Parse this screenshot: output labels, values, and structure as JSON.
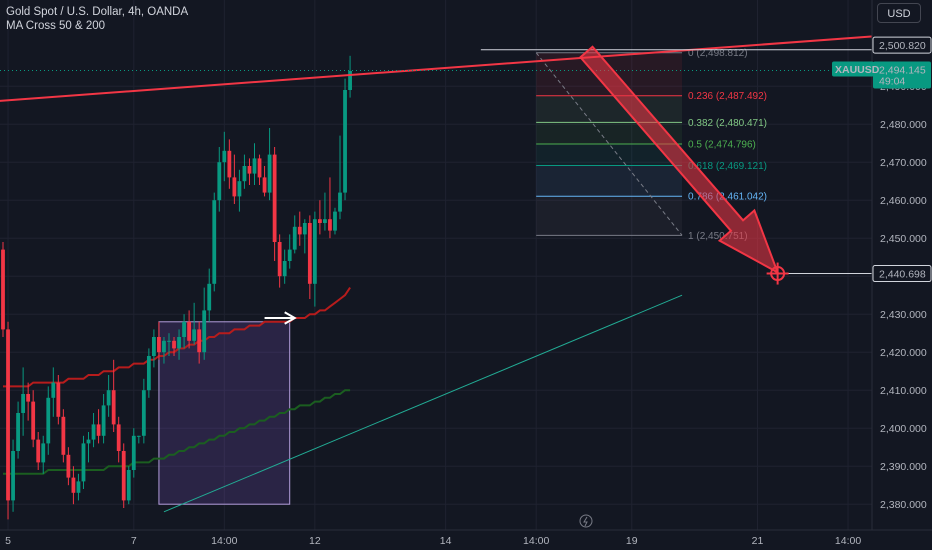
{
  "header": {
    "title": "Gold Spot / U.S. Dollar, 4h, OANDA",
    "indicator": "MA Cross 50 & 200"
  },
  "currency_button": "USD",
  "chart_data": {
    "type": "candlestick",
    "symbol": "XAUUSD",
    "ylim": [
      2376,
      2512
    ],
    "y_ticks": [
      2380,
      2390,
      2400,
      2410,
      2420,
      2430,
      2440,
      2450,
      2460,
      2470,
      2480,
      2490
    ],
    "y_tick_labels": [
      "2,380.000",
      "2,390.000",
      "2,400.000",
      "2,410.000",
      "2,420.000",
      "2,430.000",
      "2,440.000",
      "2,450.000",
      "2,460.000",
      "2,470.000",
      "2,480.000",
      "2,490.000"
    ],
    "x_ticks": [
      {
        "label": "5",
        "index": 1
      },
      {
        "label": "7",
        "index": 26
      },
      {
        "label": "14:00",
        "index": 44
      },
      {
        "label": "12",
        "index": 62
      },
      {
        "label": "14",
        "index": 88
      },
      {
        "label": "14:00",
        "index": 106
      },
      {
        "label": "19",
        "index": 125
      },
      {
        "label": "21",
        "index": 150
      },
      {
        "label": "14:00",
        "index": 168
      }
    ],
    "candles": [
      [
        2447,
        2449,
        2424,
        2426
      ],
      [
        2426,
        2428,
        2376,
        2381
      ],
      [
        2381,
        2397,
        2378,
        2394
      ],
      [
        2394,
        2407,
        2392,
        2404
      ],
      [
        2404,
        2416,
        2398,
        2409
      ],
      [
        2409,
        2412,
        2402,
        2407
      ],
      [
        2407,
        2410,
        2395,
        2397
      ],
      [
        2397,
        2399,
        2389,
        2391
      ],
      [
        2391,
        2398,
        2388,
        2396
      ],
      [
        2396,
        2411,
        2393,
        2408
      ],
      [
        2408,
        2416,
        2403,
        2412
      ],
      [
        2412,
        2414,
        2401,
        2403
      ],
      [
        2403,
        2405,
        2391,
        2393
      ],
      [
        2393,
        2395,
        2385,
        2387
      ],
      [
        2387,
        2390,
        2380,
        2383
      ],
      [
        2383,
        2388,
        2381,
        2386
      ],
      [
        2386,
        2398,
        2384,
        2396
      ],
      [
        2396,
        2399,
        2391,
        2397
      ],
      [
        2397,
        2404,
        2395,
        2401
      ],
      [
        2401,
        2405,
        2396,
        2398
      ],
      [
        2398,
        2409,
        2396,
        2406
      ],
      [
        2406,
        2414,
        2403,
        2410
      ],
      [
        2410,
        2418,
        2399,
        2401
      ],
      [
        2401,
        2403,
        2391,
        2394
      ],
      [
        2394,
        2396,
        2379,
        2381
      ],
      [
        2381,
        2390,
        2380,
        2389
      ],
      [
        2389,
        2400,
        2387,
        2398
      ],
      [
        2398,
        2398,
        2396,
        2398
      ],
      [
        2398,
        2413,
        2396,
        2410
      ],
      [
        2410,
        2421,
        2408,
        2419
      ],
      [
        2419,
        2426,
        2416,
        2424
      ],
      [
        2424,
        2428,
        2418,
        2420
      ],
      [
        2420,
        2424,
        2417,
        2423
      ],
      [
        2423,
        2425,
        2419,
        2423
      ],
      [
        2423,
        2424,
        2419,
        2421
      ],
      [
        2421,
        2426,
        2418,
        2424
      ],
      [
        2424,
        2430,
        2421,
        2428
      ],
      [
        2428,
        2431,
        2421,
        2423
      ],
      [
        2423,
        2433,
        2422,
        2426
      ],
      [
        2426,
        2428,
        2417,
        2420
      ],
      [
        2420,
        2437,
        2418,
        2431
      ],
      [
        2431,
        2442,
        2428,
        2438
      ],
      [
        2438,
        2462,
        2436,
        2460
      ],
      [
        2460,
        2474,
        2457,
        2470
      ],
      [
        2470,
        2478,
        2465,
        2473
      ],
      [
        2473,
        2476,
        2463,
        2466
      ],
      [
        2466,
        2472,
        2459,
        2461
      ],
      [
        2461,
        2468,
        2457,
        2465
      ],
      [
        2465,
        2472,
        2463,
        2469
      ],
      [
        2469,
        2471,
        2464,
        2467
      ],
      [
        2467,
        2475,
        2464,
        2471
      ],
      [
        2471,
        2472,
        2464,
        2466
      ],
      [
        2466,
        2469,
        2461,
        2462
      ],
      [
        2462,
        2479,
        2460,
        2472
      ],
      [
        2472,
        2474,
        2444,
        2449
      ],
      [
        2449,
        2451,
        2437,
        2440
      ],
      [
        2440,
        2447,
        2438,
        2444
      ],
      [
        2444,
        2451,
        2442,
        2447
      ],
      [
        2447,
        2456,
        2446,
        2453
      ],
      [
        2453,
        2457,
        2448,
        2451
      ],
      [
        2451,
        2455,
        2446,
        2454
      ],
      [
        2454,
        2456,
        2434,
        2438
      ],
      [
        2438,
        2457,
        2432,
        2455
      ],
      [
        2455,
        2460,
        2451,
        2454
      ],
      [
        2454,
        2462,
        2452,
        2455
      ],
      [
        2455,
        2466,
        2450,
        2452
      ],
      [
        2452,
        2458,
        2451,
        2457
      ],
      [
        2457,
        2477,
        2455,
        2462
      ],
      [
        2462,
        2492,
        2460,
        2489
      ],
      [
        2489,
        2498,
        2487,
        2494
      ]
    ],
    "series": [
      {
        "name": "MA 50",
        "color": "#b71c1c",
        "values": [
          2411,
          2411,
          2411,
          2411,
          2411,
          2411,
          2412,
          2412,
          2412,
          2412,
          2412,
          2412,
          2412,
          2413,
          2413,
          2413,
          2413,
          2414,
          2414,
          2414,
          2415,
          2415,
          2415,
          2416,
          2416,
          2416,
          2417,
          2417,
          2417,
          2418,
          2418,
          2419,
          2419,
          2420,
          2420,
          2421,
          2421,
          2422,
          2422,
          2423,
          2423,
          2424,
          2424,
          2425,
          2425,
          2425,
          2426,
          2426,
          2426,
          2427,
          2427,
          2427,
          2428,
          2428,
          2428,
          2428,
          2428,
          2428,
          2429,
          2429,
          2429,
          2430,
          2430,
          2431,
          2431,
          2432,
          2433,
          2434,
          2435,
          2437
        ]
      },
      {
        "name": "MA 200",
        "color": "#1b5e20",
        "values": [
          2388,
          2388,
          2388,
          2388,
          2388,
          2388,
          2388,
          2388,
          2388,
          2389,
          2389,
          2389,
          2389,
          2389,
          2389,
          2389,
          2389,
          2389,
          2389,
          2389,
          2389,
          2390,
          2390,
          2390,
          2390,
          2390,
          2391,
          2391,
          2391,
          2391,
          2392,
          2392,
          2392,
          2393,
          2393,
          2394,
          2394,
          2395,
          2395,
          2396,
          2396,
          2397,
          2397,
          2398,
          2398,
          2399,
          2399,
          2400,
          2400,
          2401,
          2401,
          2402,
          2402,
          2403,
          2403,
          2404,
          2404,
          2405,
          2405,
          2406,
          2406,
          2406,
          2407,
          2407,
          2408,
          2408,
          2409,
          2409,
          2410,
          2410
        ]
      }
    ],
    "resistance_line": {
      "from": [
        -2,
        2486
      ],
      "to": [
        182,
        2504
      ],
      "color": "#f23645"
    },
    "support_line": {
      "from": [
        32,
        2378
      ],
      "to": [
        135,
        2435
      ],
      "color": "#22ab94"
    },
    "range_box": {
      "x0": 31,
      "x1": 57,
      "y0": 2380,
      "y1": 2428,
      "color": "#7e57c2"
    },
    "fib_levels": [
      {
        "ratio": "0",
        "label": "0 (2,498.812)",
        "price": 2498.812,
        "color": "#787b86"
      },
      {
        "ratio": "0.236",
        "label": "0.236 (2,487.492)",
        "price": 2487.492,
        "color": "#f23645"
      },
      {
        "ratio": "0.382",
        "label": "0.382 (2,480.471)",
        "price": 2480.471,
        "color": "#81c784"
      },
      {
        "ratio": "0.5",
        "label": "0.5 (2,474.796)",
        "price": 2474.796,
        "color": "#4caf50"
      },
      {
        "ratio": "0.618",
        "label": "0.618 (2,469.121)",
        "price": 2469.121,
        "color": "#089981"
      },
      {
        "ratio": "0.786",
        "label": "0.786 (2,461.042)",
        "price": 2461.042,
        "color": "#64b5f6"
      },
      {
        "ratio": "1",
        "label": "1 (2,450.751)",
        "price": 2450.751,
        "color": "#787b86"
      }
    ],
    "fib_x": [
      106,
      135
    ],
    "arrow": {
      "from": [
        116,
        2499
      ],
      "to": [
        154,
        2441
      ],
      "color": "#f23645"
    },
    "target_marker": {
      "x": 154,
      "price": 2440.698
    },
    "price_labels": [
      {
        "text": "2,500.820",
        "price": 2500.82,
        "style": "line"
      },
      {
        "text": "2,440.698",
        "price": 2440.698,
        "style": "line"
      }
    ],
    "current_price": {
      "symbol": "XAUUSD",
      "price_text": "2,494.145",
      "timer": "49:04",
      "price": 2494.145,
      "color": "#089981"
    }
  }
}
